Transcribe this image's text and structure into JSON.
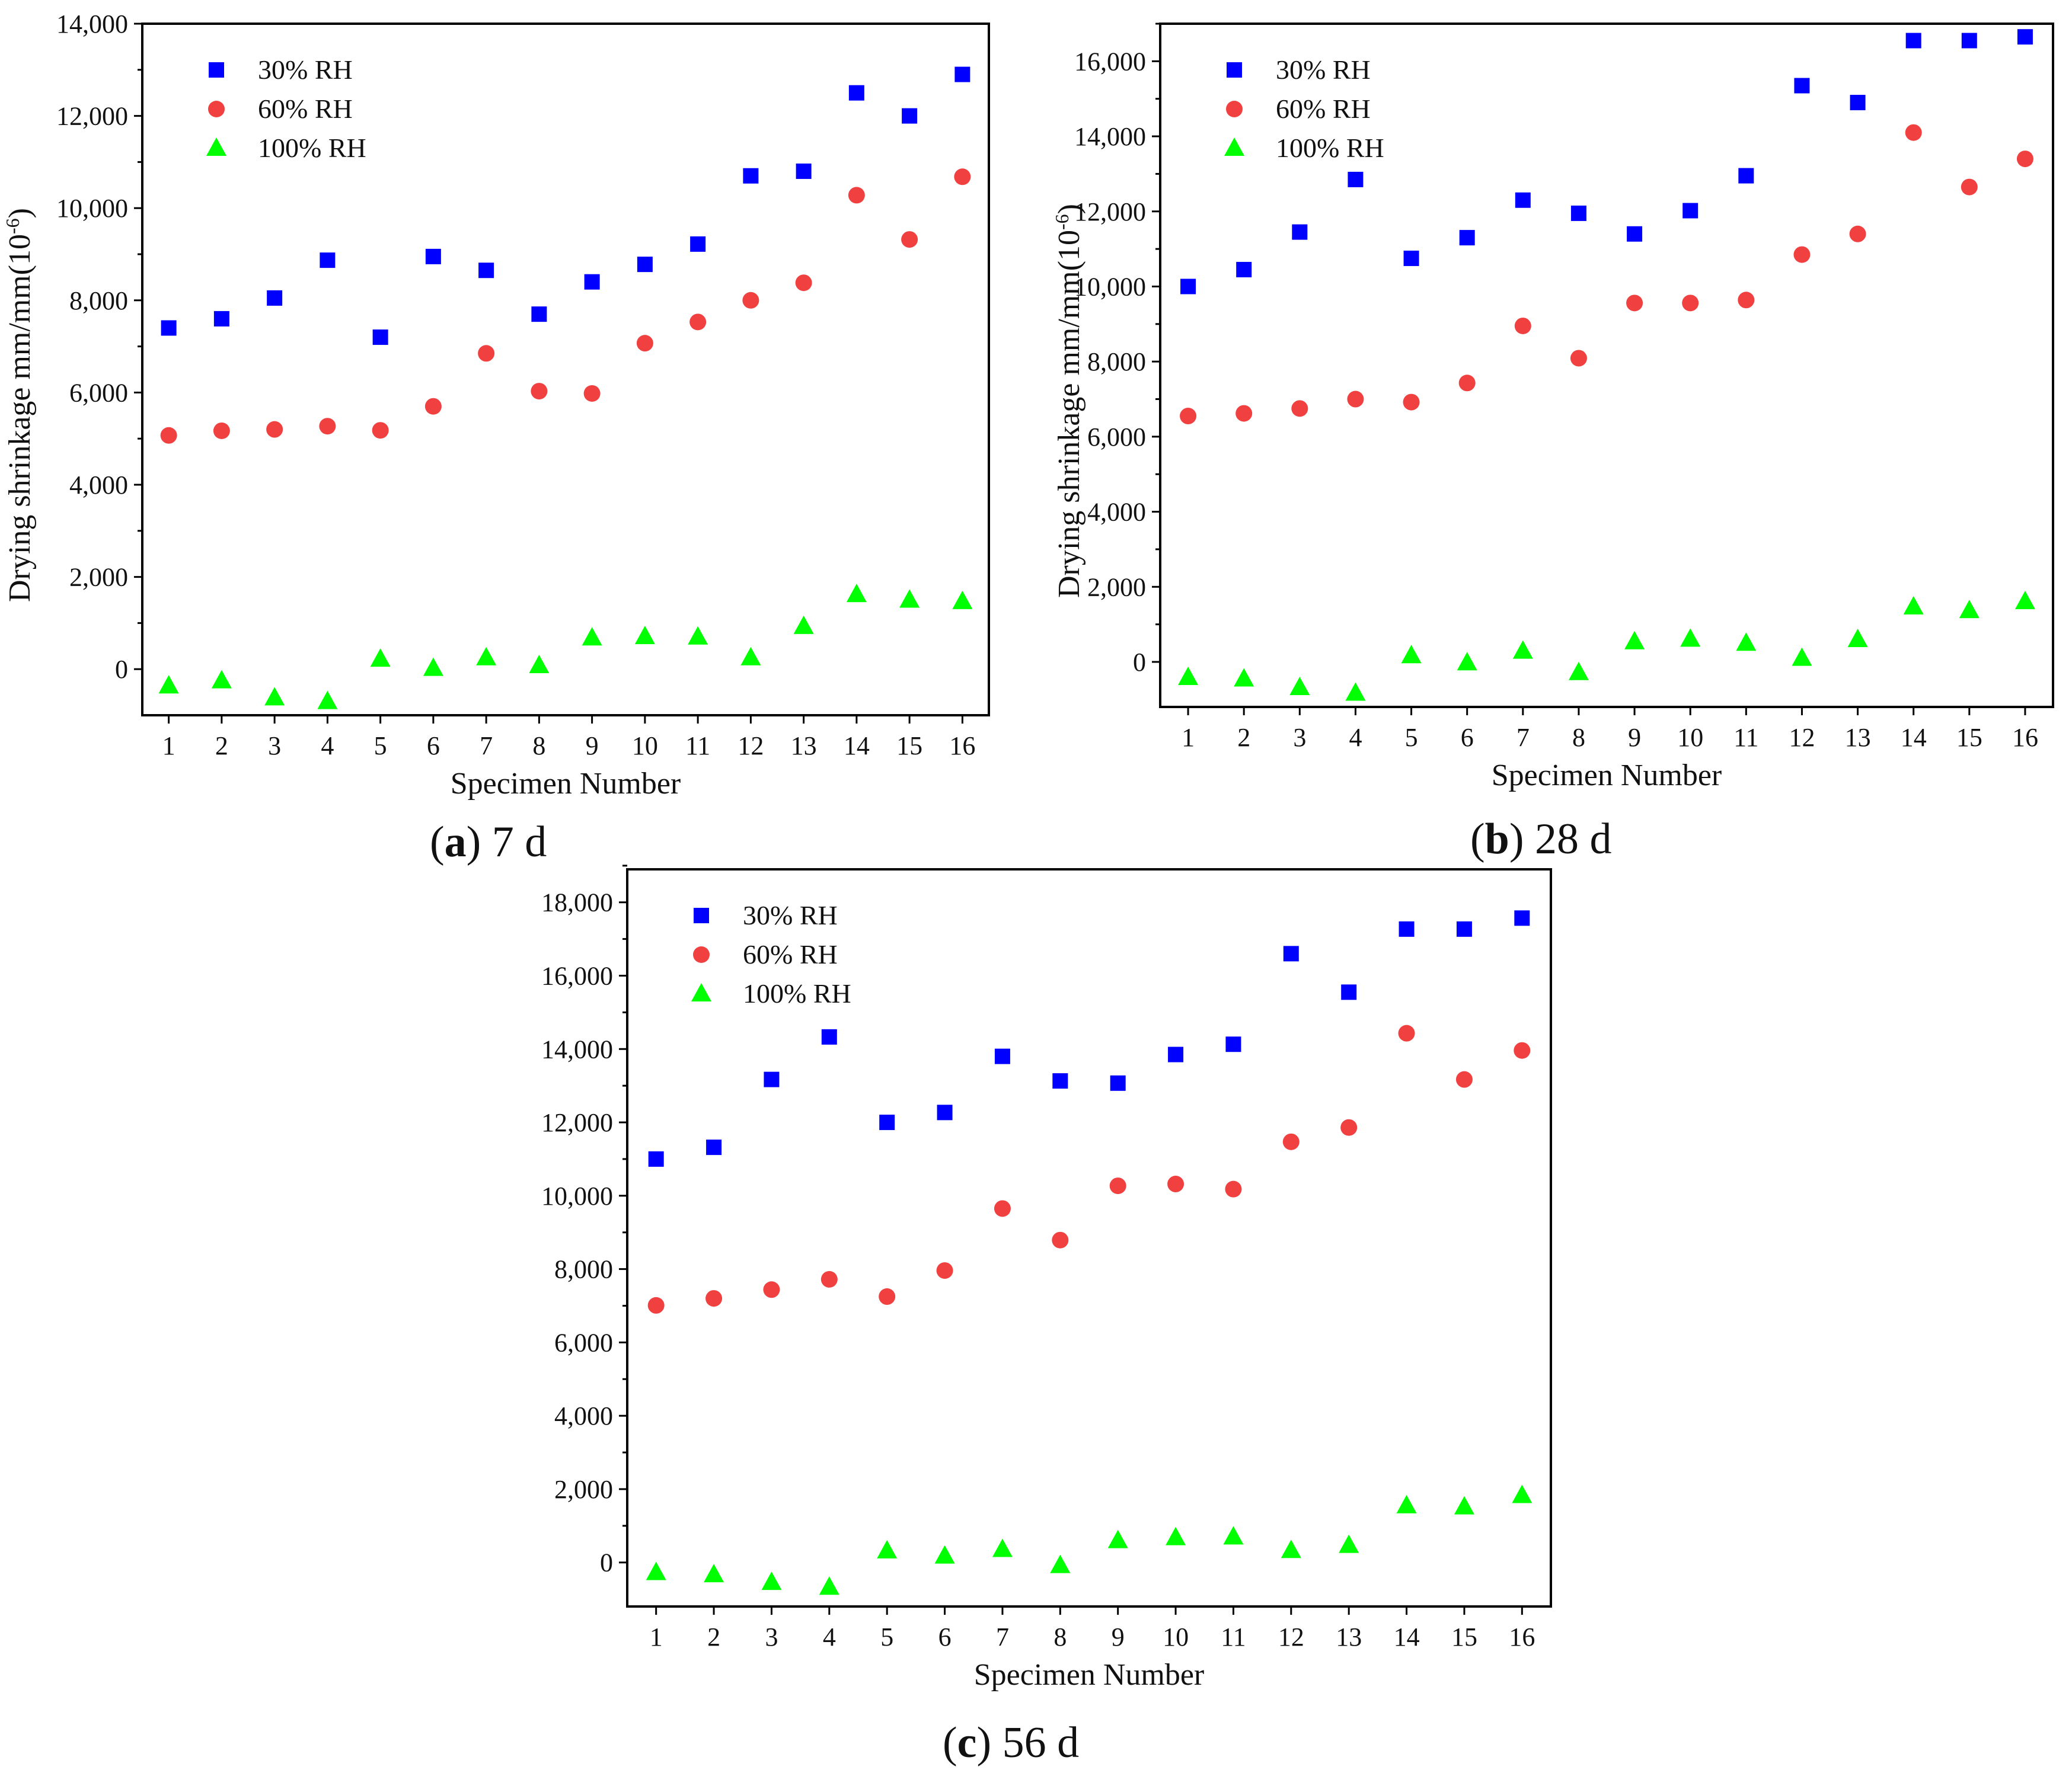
{
  "figure": {
    "panels": [
      {
        "id": "a",
        "caption_letter": "a",
        "caption_rest": " 7 d",
        "xlabel": "Specimen Number",
        "ylabel": "Drying shrinkage mm/mm(10",
        "ylabel_sup": "-6",
        "ylabel_close": ")",
        "ytick_labels": [
          "0",
          "2,000",
          "4,000",
          "6,000",
          "8,000",
          "10,000",
          "12,000",
          "14,000"
        ],
        "xtick_labels": [
          "1",
          "2",
          "3",
          "4",
          "5",
          "6",
          "7",
          "8",
          "9",
          "10",
          "11",
          "12",
          "13",
          "14",
          "15",
          "16"
        ]
      },
      {
        "id": "b",
        "caption_letter": "b",
        "caption_rest": " 28 d",
        "xlabel": "Specimen Number",
        "ylabel": "Drying shrinkage mm/mm(10",
        "ylabel_sup": "-6",
        "ylabel_close": ")",
        "ytick_labels": [
          "0",
          "2,000",
          "4,000",
          "6,000",
          "8,000",
          "10,000",
          "12,000",
          "14,000",
          "16,000"
        ],
        "xtick_labels": [
          "1",
          "2",
          "3",
          "4",
          "5",
          "6",
          "7",
          "8",
          "9",
          "10",
          "11",
          "12",
          "13",
          "14",
          "15",
          "16"
        ]
      },
      {
        "id": "c",
        "caption_letter": "c",
        "caption_rest": " 56 d",
        "xlabel": "Specimen Number",
        "ylabel": "",
        "ylabel_sup": "",
        "ylabel_close": "",
        "ytick_labels": [
          "0",
          "2,000",
          "4,000",
          "6,000",
          "8,000",
          "10,000",
          "12,000",
          "14,000",
          "16,000",
          "18,000"
        ],
        "xtick_labels": [
          "1",
          "2",
          "3",
          "4",
          "5",
          "6",
          "7",
          "8",
          "9",
          "10",
          "11",
          "12",
          "13",
          "14",
          "15",
          "16"
        ]
      }
    ],
    "legend": [
      {
        "label": "30% RH",
        "marker": "square",
        "color": "#0000ff"
      },
      {
        "label": "60% RH",
        "marker": "circle",
        "color": "#f04040"
      },
      {
        "label": "100% RH",
        "marker": "triangle",
        "color": "#00ff00"
      }
    ]
  },
  "chart_data": [
    {
      "type": "scatter",
      "title": "(a) 7 d",
      "xlabel": "Specimen Number",
      "ylabel": "Drying shrinkage mm/mm(10^-6)",
      "x": [
        1,
        2,
        3,
        4,
        5,
        6,
        7,
        8,
        9,
        10,
        11,
        12,
        13,
        14,
        15,
        16
      ],
      "xlim": [
        0.5,
        16.5
      ],
      "ylim": [
        -1000,
        14000
      ],
      "legend_position": "top-left",
      "series": [
        {
          "name": "30% RH",
          "values": [
            7400,
            7600,
            8050,
            8870,
            7200,
            8950,
            8650,
            7700,
            8400,
            8780,
            9220,
            10700,
            10800,
            12500,
            12000,
            12900
          ]
        },
        {
          "name": "60% RH",
          "values": [
            5070,
            5170,
            5200,
            5270,
            5180,
            5700,
            6850,
            6030,
            5980,
            7070,
            7530,
            8000,
            8380,
            10280,
            9320,
            10680
          ]
        },
        {
          "name": "100% RH",
          "values": [
            -360,
            -250,
            -620,
            -700,
            220,
            20,
            250,
            80,
            680,
            710,
            700,
            250,
            930,
            1620,
            1500,
            1470
          ]
        }
      ]
    },
    {
      "type": "scatter",
      "title": "(b) 28 d",
      "xlabel": "Specimen Number",
      "ylabel": "Drying shrinkage mm/mm(10^-6)",
      "x": [
        1,
        2,
        3,
        4,
        5,
        6,
        7,
        8,
        9,
        10,
        11,
        12,
        13,
        14,
        15,
        16
      ],
      "xlim": [
        0.5,
        16.5
      ],
      "ylim": [
        -1200,
        17000
      ],
      "legend_position": "top-left",
      "series": [
        {
          "name": "30% RH",
          "values": [
            10000,
            10450,
            11450,
            12850,
            10750,
            11300,
            12300,
            11950,
            11400,
            12020,
            12950,
            15350,
            14900,
            16550,
            16550,
            16650
          ]
        },
        {
          "name": "60% RH",
          "values": [
            6550,
            6620,
            6750,
            7000,
            6920,
            7430,
            8950,
            8090,
            9560,
            9560,
            9640,
            10850,
            11400,
            14100,
            12650,
            13400
          ]
        },
        {
          "name": "100% RH",
          "values": [
            -410,
            -450,
            -680,
            -830,
            170,
            -20,
            290,
            -280,
            540,
            610,
            500,
            100,
            600,
            1470,
            1370,
            1610
          ]
        }
      ]
    },
    {
      "type": "scatter",
      "title": "(c) 56 d",
      "xlabel": "Specimen Number",
      "ylabel": "",
      "x": [
        1,
        2,
        3,
        4,
        5,
        6,
        7,
        8,
        9,
        10,
        11,
        12,
        13,
        14,
        15,
        16
      ],
      "xlim": [
        0.5,
        16.5
      ],
      "ylim": [
        -1200,
        18900
      ],
      "legend_position": "top-left",
      "series": [
        {
          "name": "30% RH",
          "values": [
            11000,
            11320,
            13170,
            14330,
            12000,
            12270,
            13800,
            13130,
            13070,
            13850,
            14130,
            16600,
            15550,
            17270,
            17270,
            17570
          ]
        },
        {
          "name": "60% RH",
          "values": [
            7010,
            7200,
            7440,
            7720,
            7250,
            7960,
            9650,
            8790,
            10270,
            10320,
            10180,
            11470,
            11860,
            14430,
            13170,
            13960
          ]
        },
        {
          "name": "100% RH",
          "values": [
            -270,
            -330,
            -540,
            -670,
            320,
            180,
            360,
            -80,
            600,
            680,
            700,
            330,
            470,
            1550,
            1520,
            1830
          ]
        }
      ]
    }
  ]
}
